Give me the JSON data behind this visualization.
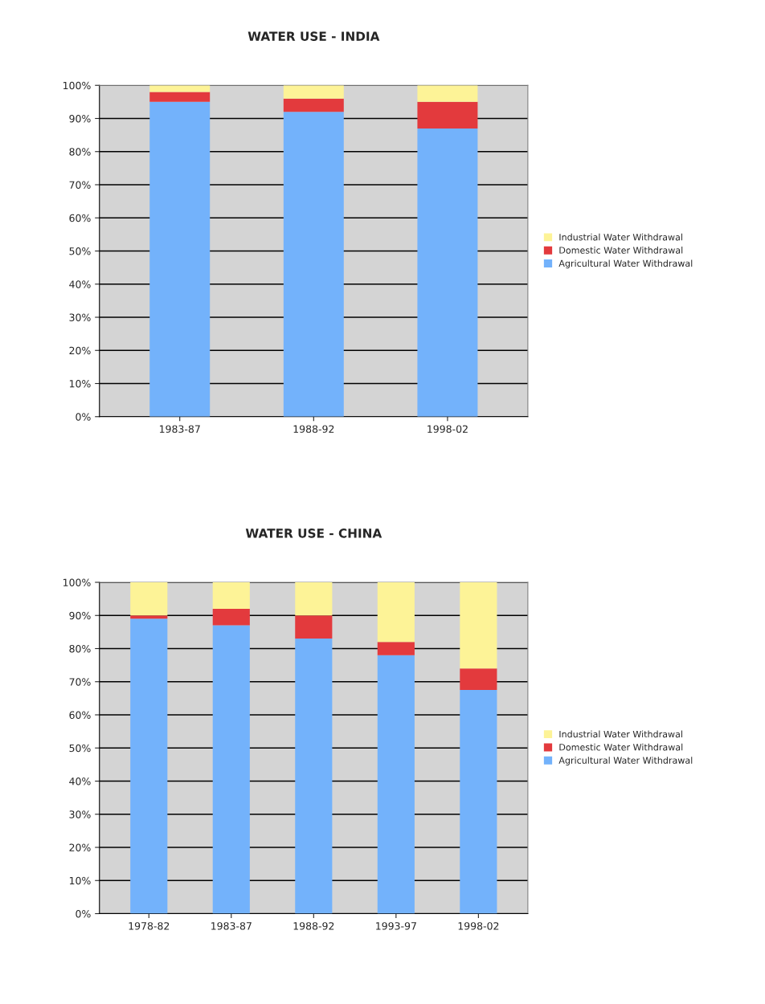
{
  "chart_data": [
    {
      "type": "bar",
      "title": "WATER USE - INDIA",
      "categories": [
        "1983-87",
        "1988-92",
        "1998-02"
      ],
      "stacked": true,
      "series": [
        {
          "name": "Agricultural Water Withdrawal",
          "color": "#73b2fb",
          "values": [
            95,
            92,
            87
          ]
        },
        {
          "name": "Domestic Water Withdrawal",
          "color": "#e33a3d",
          "values": [
            3,
            4,
            8
          ]
        },
        {
          "name": "Industrial Water Withdrawal",
          "color": "#fdf397",
          "values": [
            2,
            4,
            5
          ]
        }
      ],
      "ylim": [
        0,
        100
      ],
      "yticks": [
        {
          "value": 0,
          "label": "0%"
        },
        {
          "value": 10,
          "label": "10%"
        },
        {
          "value": 20,
          "label": "20%"
        },
        {
          "value": 30,
          "label": "30%"
        },
        {
          "value": 40,
          "label": "40%"
        },
        {
          "value": 50,
          "label": "50%"
        },
        {
          "value": 60,
          "label": "60%"
        },
        {
          "value": 70,
          "label": "70%"
        },
        {
          "value": 80,
          "label": "80%"
        },
        {
          "value": 90,
          "label": "90%"
        },
        {
          "value": 100,
          "label": "100%"
        }
      ],
      "grid": "y",
      "legend": "right"
    },
    {
      "type": "bar",
      "title": "WATER USE - CHINA",
      "categories": [
        "1978-82",
        "1983-87",
        "1988-92",
        "1993-97",
        "1998-02"
      ],
      "stacked": true,
      "series": [
        {
          "name": "Agricultural Water Withdrawal",
          "color": "#73b2fb",
          "values": [
            89,
            87,
            83,
            78,
            67.5
          ]
        },
        {
          "name": "Domestic Water Withdrawal",
          "color": "#e33a3d",
          "values": [
            1,
            5,
            7,
            4,
            6.5
          ]
        },
        {
          "name": "Industrial Water Withdrawal",
          "color": "#fdf397",
          "values": [
            10,
            8,
            10,
            18,
            26
          ]
        }
      ],
      "ylim": [
        0,
        100
      ],
      "yticks": [
        {
          "value": 0,
          "label": "0%"
        },
        {
          "value": 10,
          "label": "10%"
        },
        {
          "value": 20,
          "label": "20%"
        },
        {
          "value": 30,
          "label": "30%"
        },
        {
          "value": 40,
          "label": "40%"
        },
        {
          "value": 50,
          "label": "50%"
        },
        {
          "value": 60,
          "label": "60%"
        },
        {
          "value": 70,
          "label": "70%"
        },
        {
          "value": 80,
          "label": "80%"
        },
        {
          "value": 90,
          "label": "90%"
        },
        {
          "value": 100,
          "label": "100%"
        }
      ],
      "grid": "y",
      "legend": "right"
    }
  ]
}
